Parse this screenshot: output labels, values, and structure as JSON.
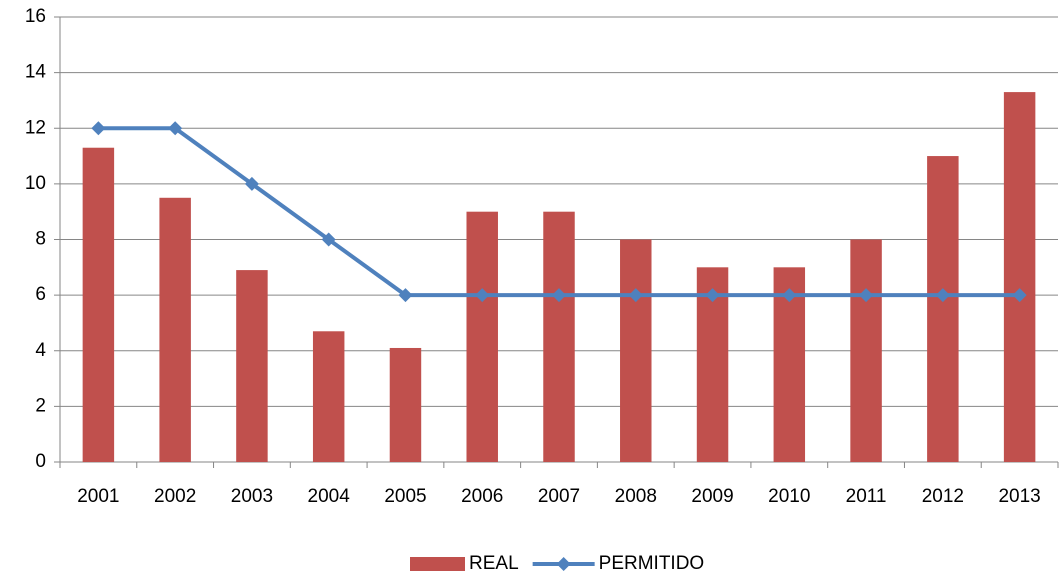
{
  "chart_data": {
    "type": "bar",
    "categories": [
      "2001",
      "2002",
      "2003",
      "2004",
      "2005",
      "2006",
      "2007",
      "2008",
      "2009",
      "2010",
      "2011",
      "2012",
      "2013"
    ],
    "series": [
      {
        "name": "REAL",
        "type": "bar",
        "color": "#c0504d",
        "values": [
          11.3,
          9.5,
          6.9,
          4.7,
          4.1,
          9,
          9,
          8,
          7,
          7,
          8,
          11,
          13.3
        ]
      },
      {
        "name": "PERMITIDO",
        "type": "line",
        "color": "#4f81bd",
        "values": [
          12,
          12,
          10,
          8,
          6,
          6,
          6,
          6,
          6,
          6,
          6,
          6,
          6
        ]
      }
    ],
    "ylim": [
      0,
      16
    ],
    "yticks": [
      0,
      2,
      4,
      6,
      8,
      10,
      12,
      14,
      16
    ],
    "grid": true,
    "legend": "bottom"
  }
}
